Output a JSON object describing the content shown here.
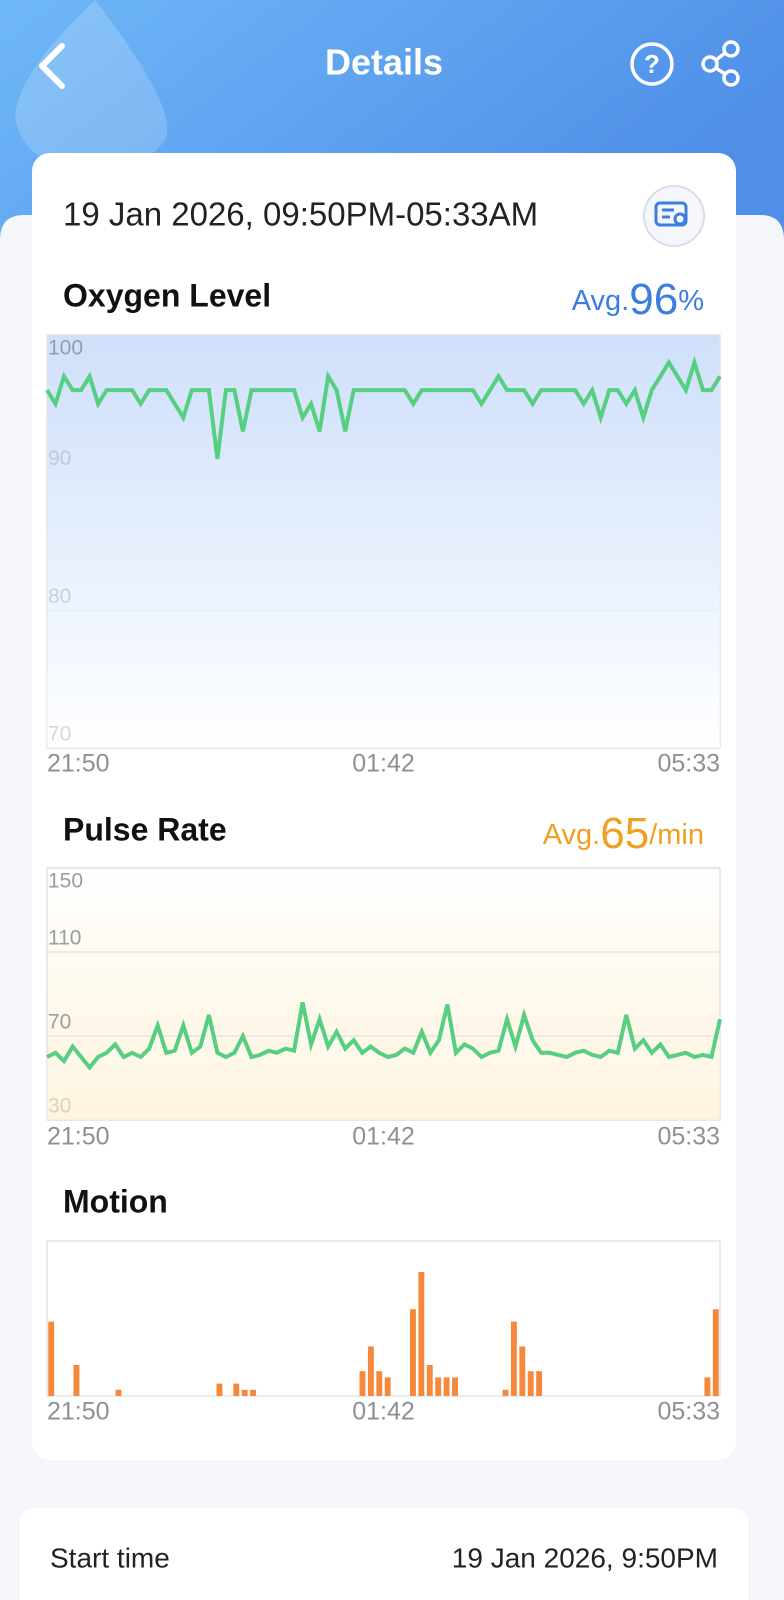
{
  "header": {
    "title": "Details"
  },
  "session": {
    "date_range": "19 Jan 2026, 09:50PM-05:33AM"
  },
  "charts": [
    {
      "type": "line",
      "title": "Oxygen Level",
      "avg_prefix": "Avg.",
      "avg_value": 96,
      "avg_unit": "%",
      "color": "#57cf80",
      "grid": true,
      "ylim": [
        70,
        100
      ],
      "yticks": [
        70,
        80,
        90,
        100
      ],
      "xtick_labels": [
        "21:50",
        "01:42",
        "05:33"
      ],
      "values": [
        96,
        95,
        97,
        96,
        96,
        97,
        95,
        96,
        96,
        96,
        96,
        95,
        96,
        96,
        96,
        95,
        94,
        96,
        96,
        96,
        91,
        96,
        96,
        93,
        96,
        96,
        96,
        96,
        96,
        96,
        94,
        95,
        93,
        97,
        96,
        93,
        96,
        96,
        96,
        96,
        96,
        96,
        96,
        95,
        96,
        96,
        96,
        96,
        96,
        96,
        96,
        95,
        96,
        97,
        96,
        96,
        96,
        95,
        96,
        96,
        96,
        96,
        96,
        95,
        96,
        94,
        96,
        96,
        95,
        96,
        94,
        96,
        97,
        98,
        97,
        96,
        98,
        96,
        96,
        97
      ]
    },
    {
      "type": "line",
      "title": "Pulse Rate",
      "avg_prefix": "Avg.",
      "avg_value": 65,
      "avg_unit": "/min",
      "color": "#57cf80",
      "grid": true,
      "ylim": [
        30,
        150
      ],
      "yticks": [
        30,
        70,
        110,
        150
      ],
      "xtick_labels": [
        "21:50",
        "01:42",
        "05:33"
      ],
      "values": [
        60,
        62,
        58,
        65,
        60,
        55,
        60,
        62,
        66,
        60,
        62,
        60,
        64,
        75,
        62,
        63,
        75,
        62,
        65,
        80,
        62,
        60,
        62,
        70,
        60,
        61,
        63,
        62,
        64,
        63,
        86,
        66,
        78,
        65,
        72,
        64,
        68,
        62,
        65,
        62,
        60,
        61,
        64,
        62,
        72,
        62,
        68,
        85,
        62,
        66,
        64,
        60,
        62,
        63,
        78,
        65,
        80,
        68,
        62,
        62,
        61,
        60,
        62,
        63,
        61,
        60,
        63,
        62,
        80,
        64,
        68,
        62,
        66,
        60,
        61,
        62,
        60,
        61,
        60,
        78
      ]
    },
    {
      "type": "bar",
      "title": "Motion",
      "color": "#f5883a",
      "ylim": [
        0,
        25
      ],
      "xtick_labels": [
        "21:50",
        "01:42",
        "05:33"
      ],
      "values": [
        12,
        0,
        0,
        5,
        0,
        0,
        0,
        0,
        1,
        0,
        0,
        0,
        0,
        0,
        0,
        0,
        0,
        0,
        0,
        0,
        2,
        0,
        2,
        1,
        1,
        0,
        0,
        0,
        0,
        0,
        0,
        0,
        0,
        0,
        0,
        0,
        0,
        4,
        8,
        4,
        3,
        0,
        0,
        14,
        20,
        5,
        3,
        3,
        3,
        0,
        0,
        0,
        0,
        0,
        1,
        12,
        8,
        4,
        4,
        0,
        0,
        0,
        0,
        0,
        0,
        0,
        0,
        0,
        0,
        0,
        0,
        0,
        0,
        0,
        0,
        0,
        0,
        0,
        3,
        14
      ]
    }
  ],
  "summary": {
    "rows": [
      {
        "label": "Start time",
        "value": "19 Jan 2026, 9:50PM"
      }
    ]
  }
}
